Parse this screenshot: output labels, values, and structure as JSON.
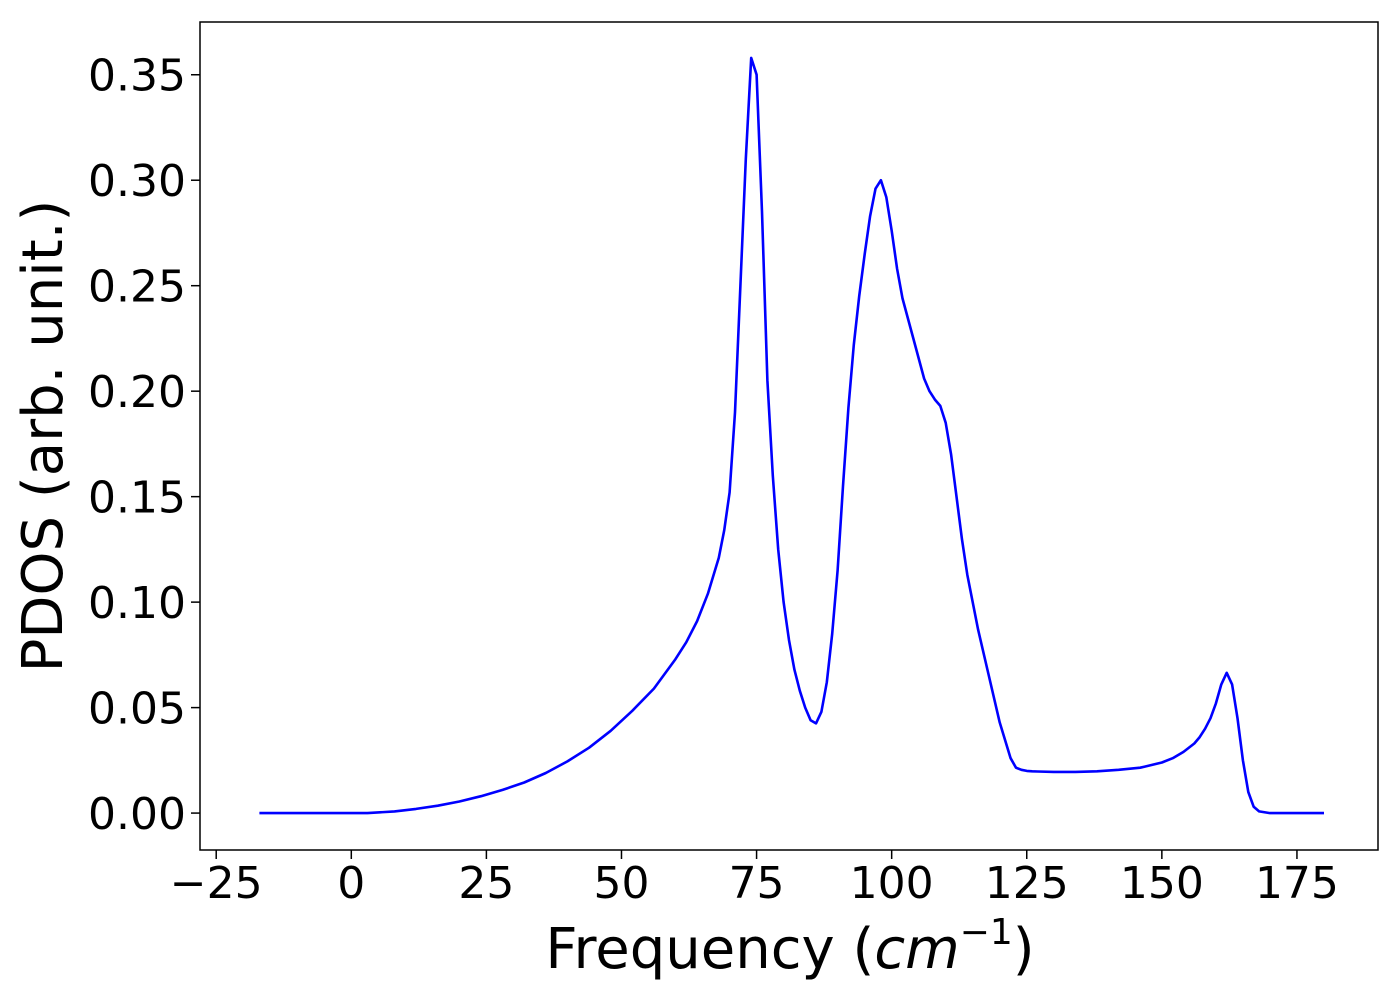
{
  "chart_data": {
    "type": "line",
    "title": "",
    "xlabel": "Frequency (",
    "xlabel_math": "cm",
    "xlabel_sup": "−1",
    "xlabel_close": ")",
    "ylabel": "PDOS (arb. unit.)",
    "xlim": [
      -28,
      190
    ],
    "ylim": [
      -0.0175,
      0.375
    ],
    "grid": false,
    "legend": "none",
    "x_ticks": [
      -25,
      0,
      25,
      50,
      75,
      100,
      125,
      150,
      175
    ],
    "x_tick_labels": [
      "−25",
      "0",
      "25",
      "50",
      "75",
      "100",
      "125",
      "150",
      "175"
    ],
    "y_ticks": [
      0.0,
      0.05,
      0.1,
      0.15,
      0.2,
      0.25,
      0.3,
      0.35
    ],
    "y_tick_labels": [
      "0.00",
      "0.05",
      "0.10",
      "0.15",
      "0.20",
      "0.25",
      "0.30",
      "0.35"
    ],
    "series": [
      {
        "color": "#0000ff",
        "x": [
          -17,
          -10,
          0,
          3,
          8,
          12,
          16,
          20,
          24,
          28,
          32,
          36,
          40,
          44,
          48,
          52,
          56,
          60,
          62,
          64,
          66,
          68,
          69,
          70,
          71,
          72,
          73,
          74,
          75,
          76,
          77,
          78,
          79,
          80,
          81,
          82,
          83,
          84,
          85,
          86,
          87,
          88,
          89,
          90,
          91,
          92,
          93,
          94,
          95,
          96,
          97,
          98,
          99,
          100,
          101,
          102,
          104,
          106,
          107,
          108,
          109,
          110,
          111,
          112,
          113,
          114,
          116,
          118,
          120,
          122,
          123,
          124,
          125,
          126,
          127,
          130,
          134,
          138,
          142,
          146,
          150,
          152,
          154,
          156,
          157,
          158,
          159,
          160,
          161,
          162,
          163,
          164,
          165,
          166,
          167,
          168,
          170,
          175,
          180
        ],
        "y": [
          0.0,
          0.0,
          0.0,
          0.0,
          0.0008,
          0.002,
          0.0035,
          0.0055,
          0.008,
          0.011,
          0.0145,
          0.019,
          0.0245,
          0.031,
          0.039,
          0.0485,
          0.059,
          0.073,
          0.081,
          0.091,
          0.104,
          0.121,
          0.134,
          0.152,
          0.19,
          0.25,
          0.31,
          0.358,
          0.35,
          0.285,
          0.205,
          0.16,
          0.125,
          0.1,
          0.082,
          0.068,
          0.058,
          0.05,
          0.044,
          0.0425,
          0.048,
          0.062,
          0.085,
          0.115,
          0.155,
          0.192,
          0.222,
          0.245,
          0.265,
          0.283,
          0.296,
          0.3,
          0.292,
          0.276,
          0.258,
          0.244,
          0.225,
          0.206,
          0.2,
          0.196,
          0.193,
          0.185,
          0.17,
          0.15,
          0.13,
          0.113,
          0.087,
          0.065,
          0.043,
          0.026,
          0.0215,
          0.0205,
          0.02,
          0.0198,
          0.0197,
          0.0195,
          0.0195,
          0.0198,
          0.0205,
          0.0215,
          0.024,
          0.026,
          0.029,
          0.033,
          0.036,
          0.04,
          0.045,
          0.052,
          0.061,
          0.0665,
          0.061,
          0.045,
          0.025,
          0.01,
          0.003,
          0.0008,
          0.0,
          0.0,
          0.0
        ]
      }
    ]
  }
}
